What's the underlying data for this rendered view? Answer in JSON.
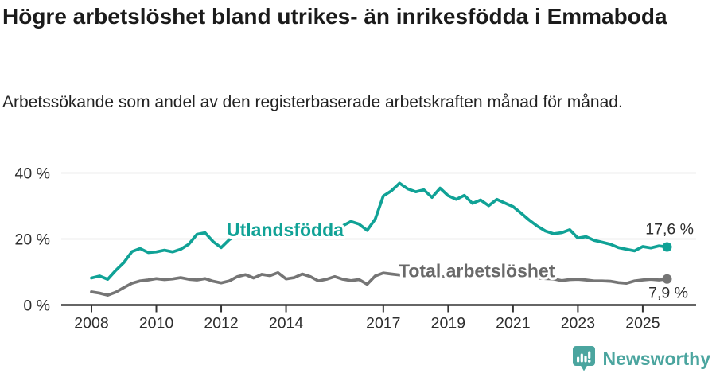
{
  "header": {
    "title": "Högre arbetslöshet bland utrikes- än inrikesfödda i Emmaboda",
    "subtitle": "Arbetssökande som andel av den registerbaserade arbetskraften månad för månad."
  },
  "chart_data": {
    "type": "line",
    "title": "Högre arbetslöshet bland utrikes- än inrikesfödda i Emmaboda",
    "subtitle": "Arbetssökande som andel av den registerbaserade arbetskraften månad för månad.",
    "x_unit": "decimal-year (quarterly samples of monthly data)",
    "x": [
      2008.0,
      2008.25,
      2008.5,
      2008.75,
      2009.0,
      2009.25,
      2009.5,
      2009.75,
      2010.0,
      2010.25,
      2010.5,
      2010.75,
      2011.0,
      2011.25,
      2011.5,
      2011.75,
      2012.0,
      2012.25,
      2012.5,
      2012.75,
      2013.0,
      2013.25,
      2013.5,
      2013.75,
      2014.0,
      2014.25,
      2014.5,
      2014.75,
      2015.0,
      2015.25,
      2015.5,
      2015.75,
      2016.0,
      2016.25,
      2016.5,
      2016.75,
      2017.0,
      2017.25,
      2017.5,
      2017.75,
      2018.0,
      2018.25,
      2018.5,
      2018.75,
      2019.0,
      2019.25,
      2019.5,
      2019.75,
      2020.0,
      2020.25,
      2020.5,
      2020.75,
      2021.0,
      2021.25,
      2021.5,
      2021.75,
      2022.0,
      2022.25,
      2022.5,
      2022.75,
      2023.0,
      2023.25,
      2023.5,
      2023.75,
      2024.0,
      2024.25,
      2024.5,
      2024.75,
      2025.0,
      2025.25,
      2025.5,
      2025.75
    ],
    "series": [
      {
        "name": "Utlandsfödda",
        "color": "#10a296",
        "end_label": "17,6 %",
        "end_value": 17.6,
        "values": [
          8.2,
          8.8,
          7.8,
          10.5,
          12.9,
          16.2,
          17.1,
          15.9,
          16.1,
          16.6,
          16.1,
          16.9,
          18.4,
          21.4,
          21.9,
          19.2,
          17.4,
          19.8,
          21.2,
          21.0,
          21.5,
          21.1,
          21.7,
          21.3,
          21.0,
          21.6,
          22.1,
          21.4,
          21.2,
          21.8,
          22.6,
          24.0,
          25.3,
          24.5,
          22.6,
          26.0,
          33.0,
          34.6,
          36.9,
          35.2,
          34.3,
          34.9,
          32.6,
          35.4,
          33.1,
          32.0,
          33.2,
          30.8,
          31.8,
          30.1,
          32.0,
          30.9,
          29.8,
          27.8,
          25.7,
          23.9,
          22.4,
          21.6,
          21.9,
          22.8,
          20.3,
          20.7,
          19.6,
          19.0,
          18.4,
          17.4,
          16.9,
          16.4,
          17.7,
          17.3,
          17.9,
          17.6
        ]
      },
      {
        "name": "Total arbetslöshet",
        "color": "#757575",
        "end_label": "7,9 %",
        "end_value": 7.9,
        "values": [
          4.0,
          3.6,
          3.0,
          3.9,
          5.3,
          6.6,
          7.3,
          7.6,
          8.0,
          7.7,
          7.9,
          8.3,
          7.8,
          7.6,
          8.0,
          7.2,
          6.7,
          7.3,
          8.6,
          9.2,
          8.2,
          9.3,
          8.9,
          9.8,
          7.9,
          8.3,
          9.4,
          8.6,
          7.3,
          7.8,
          8.6,
          7.8,
          7.4,
          7.7,
          6.3,
          8.8,
          9.7,
          9.4,
          9.1,
          8.8,
          8.6,
          8.8,
          8.5,
          8.7,
          8.4,
          8.6,
          8.8,
          8.6,
          8.9,
          9.6,
          10.0,
          9.5,
          9.1,
          8.8,
          8.4,
          8.2,
          8.0,
          7.9,
          7.4,
          7.7,
          7.8,
          7.6,
          7.3,
          7.3,
          7.2,
          6.8,
          6.6,
          7.3,
          7.6,
          7.8,
          7.6,
          7.9
        ]
      }
    ],
    "ylim": [
      0,
      42
    ],
    "yticks": [
      {
        "value": 0,
        "label": "0 %"
      },
      {
        "value": 20,
        "label": "20 %"
      },
      {
        "value": 40,
        "label": "40 %"
      }
    ],
    "xticks": [
      {
        "value": 2008,
        "label": "2008"
      },
      {
        "value": 2010,
        "label": "2010"
      },
      {
        "value": 2012,
        "label": "2012"
      },
      {
        "value": 2014,
        "label": "2014"
      },
      {
        "value": 2017,
        "label": "2017"
      },
      {
        "value": 2019,
        "label": "2019"
      },
      {
        "value": 2021,
        "label": "2021"
      },
      {
        "value": 2023,
        "label": "2023"
      },
      {
        "value": 2025,
        "label": "2025"
      }
    ],
    "grid": "horizontal-only",
    "legend_position": "inline-labels-on-lines",
    "colors": {
      "grid": "#d9d9d9",
      "axis": "#333333",
      "tick_text": "#2e2e2e",
      "end_label_text": "#2d2d2d",
      "series_label_gray": "#696969",
      "brand_teal": "#4ba59f"
    }
  },
  "footer": {
    "brand": "Newsworthy"
  }
}
